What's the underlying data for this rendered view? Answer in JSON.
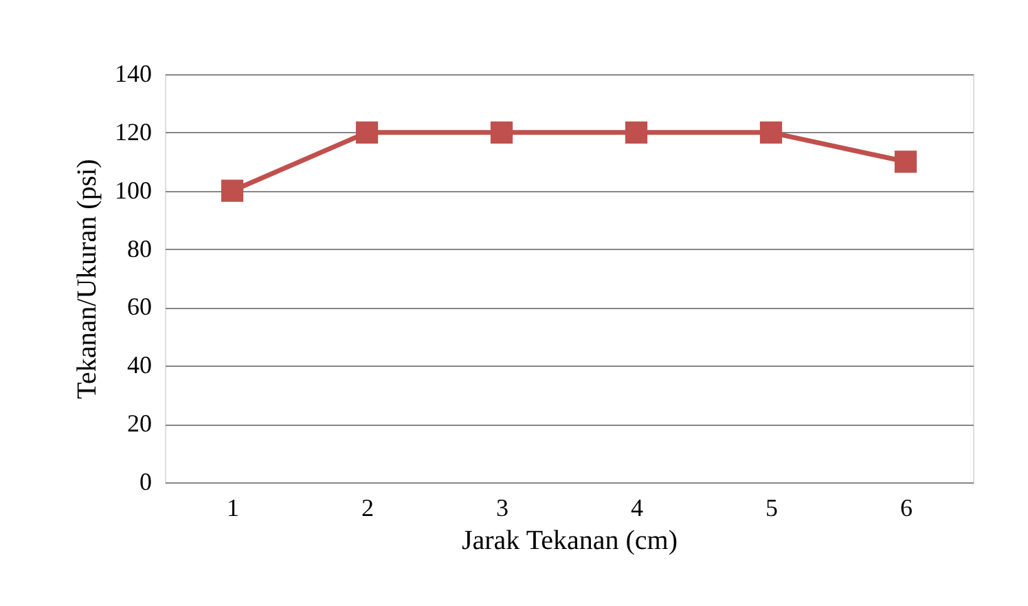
{
  "chart_data": {
    "type": "line",
    "xlabel": "Jarak Tekanan (cm)",
    "ylabel": "Tekanan/Ukuran (psi)",
    "categories": [
      "1",
      "2",
      "3",
      "4",
      "5",
      "6"
    ],
    "series": [
      {
        "color": "#c0504d",
        "values": [
          100,
          120,
          120,
          120,
          120,
          110
        ]
      }
    ],
    "ylim": [
      0,
      140
    ],
    "yticks": [
      0,
      20,
      40,
      60,
      80,
      100,
      120,
      140
    ],
    "grid": "y",
    "marker": "square",
    "line_style": "solid",
    "legend": false
  }
}
